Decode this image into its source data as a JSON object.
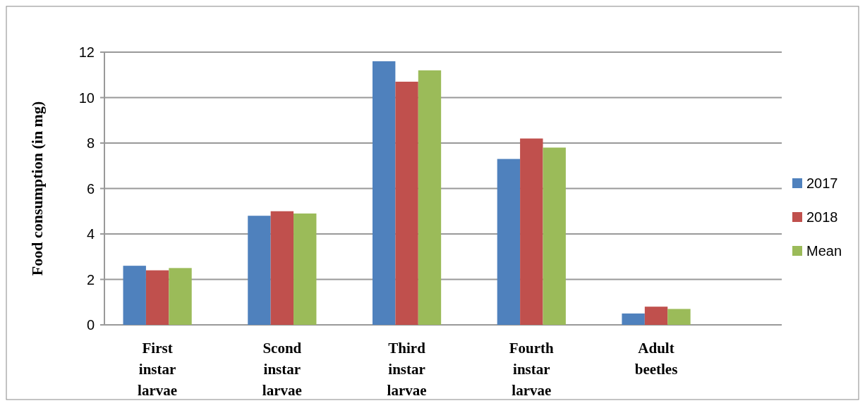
{
  "chart_data": {
    "type": "bar",
    "ylabel": "Food consumption (in mg)",
    "categories": [
      "First instar larvae",
      "Scond instar larvae",
      "Third instar larvae",
      "Fourth instar larvae",
      "Adult beetles"
    ],
    "series": [
      {
        "name": "2017",
        "color": "#4f81bd",
        "values": [
          2.6,
          4.8,
          11.6,
          7.3,
          0.5
        ]
      },
      {
        "name": "2018",
        "color": "#c0504d",
        "values": [
          2.4,
          5.0,
          10.7,
          8.2,
          0.8
        ]
      },
      {
        "name": "Mean",
        "color": "#9bbb59",
        "values": [
          2.5,
          4.9,
          11.2,
          7.8,
          0.7
        ]
      }
    ],
    "ylim": [
      0,
      12
    ],
    "yticks": [
      0,
      2,
      4,
      6,
      8,
      10,
      12
    ],
    "grid": "y",
    "legend": "right"
  }
}
